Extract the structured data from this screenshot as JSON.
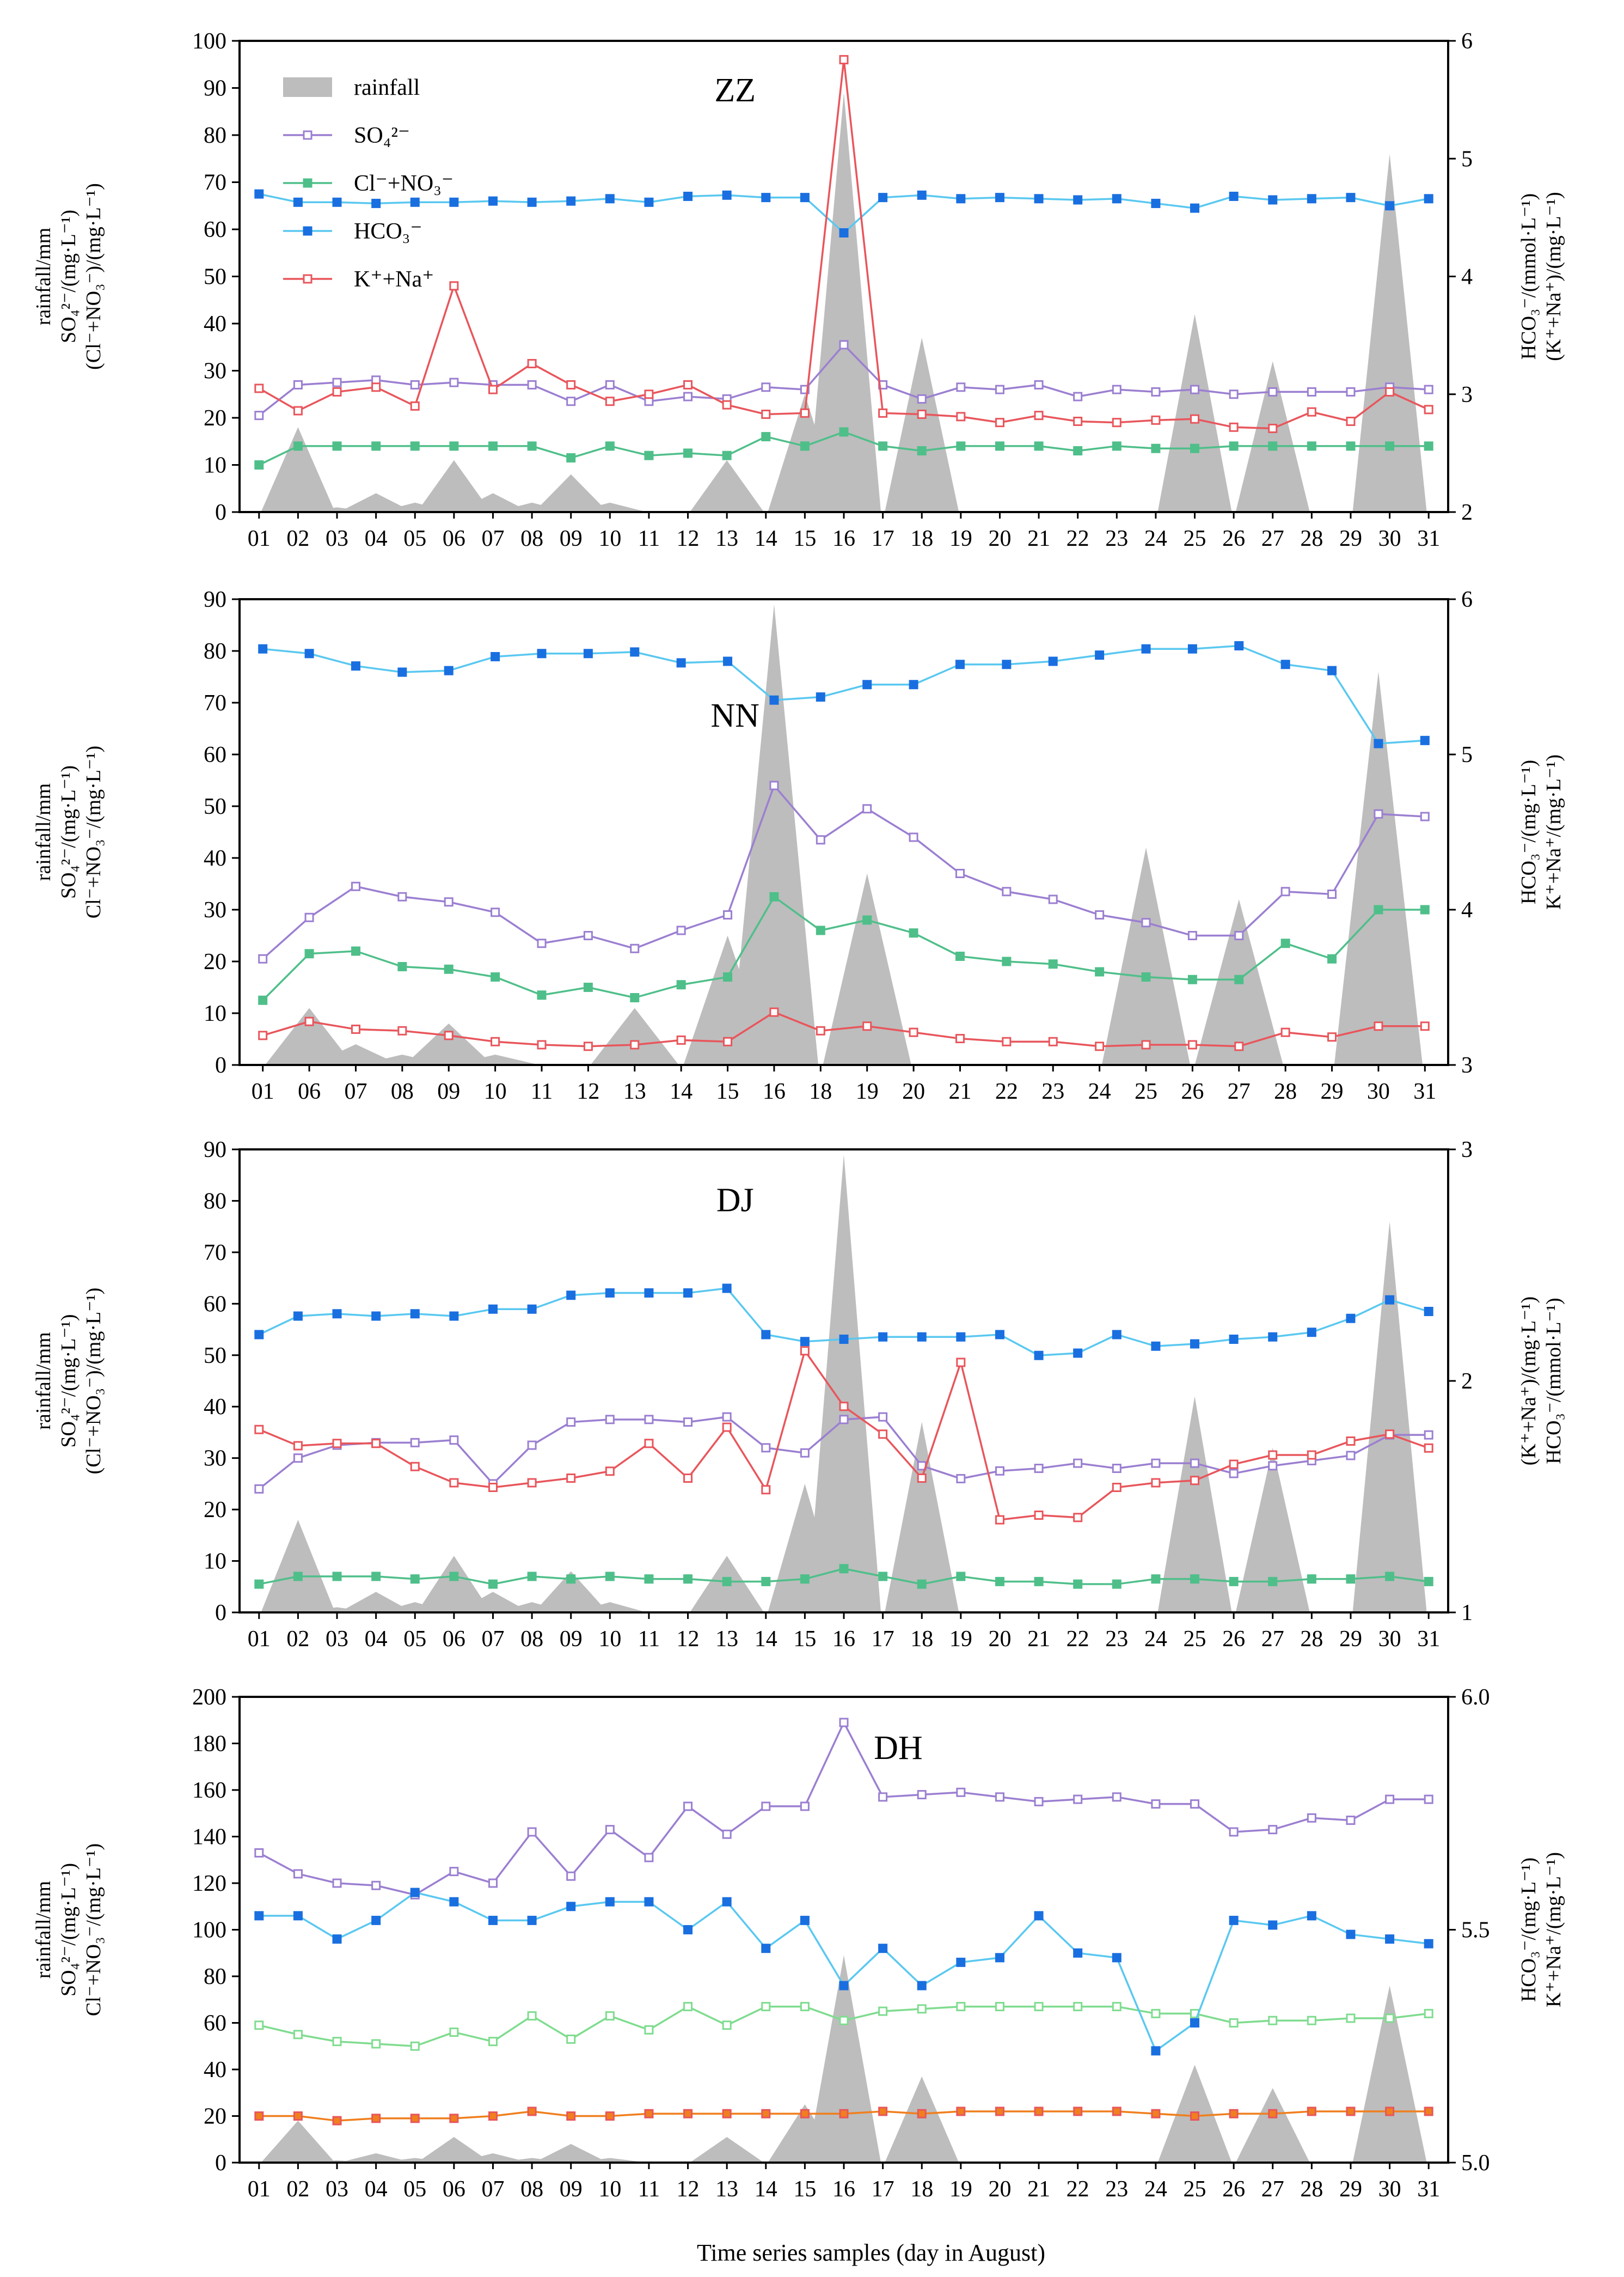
{
  "figure": {
    "xlabel": "Time series samples (day in August)"
  },
  "colors": {
    "rainfall": "#bdbdbd",
    "so4": "#9b7fd1",
    "clno3": "#4fbf8a",
    "clno3_dh": "#7fdc8f",
    "hco3": "#1a6fe0",
    "hco3_line": "#5ac8f0",
    "kna": "#e8565c",
    "kna_dh": "#f07f1e"
  },
  "chart_data": [
    {
      "type": "line",
      "title": "ZZ",
      "legend": {
        "placement": "top-left",
        "entries": [
          {
            "key": "rainfall",
            "text": "rainfall"
          },
          {
            "key": "so4",
            "text": "SO₄²⁻"
          },
          {
            "key": "clno3",
            "text": "Cl⁻+NO₃⁻"
          },
          {
            "key": "hco3",
            "text": "HCO₃⁻"
          },
          {
            "key": "kna",
            "text": "K⁺+Na⁺"
          }
        ]
      },
      "ylabel_left": [
        "rainfall/mm",
        "SO₄²⁻/(mg·L⁻¹)",
        "(Cl⁻+NO₃⁻)/(mg·L⁻¹)"
      ],
      "ylabel_right": [
        "HCO₃⁻/(mmol·L⁻¹)",
        "(K⁺+Na⁺)/(mg·L⁻¹)"
      ],
      "ylim_left": [
        0,
        100
      ],
      "yticks_left": [
        0,
        10,
        20,
        30,
        40,
        50,
        60,
        70,
        80,
        90,
        100
      ],
      "ylim_right": [
        2,
        6
      ],
      "yticks_right": [
        2,
        3,
        4,
        5,
        6
      ],
      "categories": [
        "01",
        "02",
        "03",
        "04",
        "05",
        "06",
        "07",
        "08",
        "09",
        "10",
        "11",
        "12",
        "13",
        "14",
        "15",
        "16",
        "17",
        "18",
        "19",
        "20",
        "21",
        "22",
        "23",
        "24",
        "25",
        "26",
        "27",
        "28",
        "29",
        "30",
        "31"
      ],
      "rainfall": [
        0,
        18,
        1,
        4,
        2,
        11,
        4,
        2,
        8,
        2,
        0,
        0,
        11,
        0,
        25,
        89,
        0,
        37,
        0,
        0,
        0,
        0,
        0,
        0,
        42,
        0,
        32,
        0,
        0,
        76,
        0
      ],
      "series": [
        {
          "key": "so4",
          "axis": "left",
          "values": [
            20.5,
            27,
            27.5,
            28,
            27,
            27.5,
            27,
            27,
            23.5,
            27,
            23.5,
            24.5,
            24,
            26.5,
            26,
            35.5,
            27,
            24,
            26.5,
            26,
            27,
            24.5,
            26,
            25.5,
            26,
            25,
            25.5,
            25.5,
            25.5,
            26.5,
            26
          ]
        },
        {
          "key": "clno3",
          "axis": "left",
          "values": [
            10,
            14,
            14,
            14,
            14,
            14,
            14,
            14,
            11.5,
            14,
            12,
            12.5,
            12,
            16,
            14,
            17,
            14,
            13,
            14,
            14,
            14,
            13,
            14,
            13.5,
            13.5,
            14,
            14,
            14,
            14,
            14,
            14
          ]
        },
        {
          "key": "hco3",
          "axis": "right",
          "values": [
            4.7,
            4.63,
            4.63,
            4.62,
            4.63,
            4.63,
            4.64,
            4.63,
            4.64,
            4.66,
            4.63,
            4.68,
            4.69,
            4.67,
            4.67,
            4.37,
            4.67,
            4.69,
            4.66,
            4.67,
            4.66,
            4.65,
            4.66,
            4.62,
            4.58,
            4.68,
            4.65,
            4.66,
            4.67,
            4.6,
            4.66
          ]
        },
        {
          "key": "kna",
          "axis": "right",
          "values": [
            3.05,
            2.86,
            3.02,
            3.06,
            2.9,
            3.92,
            3.04,
            3.26,
            3.08,
            2.94,
            3.0,
            3.08,
            2.91,
            2.83,
            2.84,
            5.84,
            2.84,
            2.83,
            2.81,
            2.76,
            2.82,
            2.77,
            2.76,
            2.78,
            2.79,
            2.72,
            2.71,
            2.85,
            2.77,
            3.02,
            2.87
          ]
        }
      ]
    },
    {
      "type": "line",
      "title": "NN",
      "ylabel_left": [
        "rainfall/mm",
        "SO₄²⁻/(mg·L⁻¹)",
        "Cl⁻+NO₃⁻/(mg·L⁻¹)"
      ],
      "ylabel_right": [
        "HCO₃⁻/(mg·L⁻¹)",
        "K⁺+Na⁺/(mg·L⁻¹)"
      ],
      "ylim_left": [
        0,
        90
      ],
      "yticks_left": [
        0,
        10,
        20,
        30,
        40,
        50,
        60,
        70,
        80,
        90
      ],
      "ylim_right": [
        3,
        6
      ],
      "yticks_right": [
        3,
        4,
        5,
        6
      ],
      "categories": [
        "01",
        "06",
        "07",
        "08",
        "09",
        "10",
        "11",
        "12",
        "13",
        "14",
        "15",
        "16",
        "18",
        "19",
        "20",
        "21",
        "22",
        "23",
        "24",
        "25",
        "26",
        "27",
        "28",
        "29",
        "30",
        "31"
      ],
      "rainfall": [
        0,
        11,
        4,
        2,
        8,
        2,
        0,
        0,
        11,
        0,
        25,
        89,
        0,
        37,
        0,
        0,
        0,
        0,
        0,
        42,
        0,
        32,
        0,
        0,
        76,
        0
      ],
      "series": [
        {
          "key": "so4",
          "axis": "left",
          "values": [
            20.5,
            28.5,
            34.5,
            32.5,
            31.5,
            29.5,
            23.5,
            25,
            22.5,
            26,
            29,
            54,
            43.5,
            49.5,
            44,
            37,
            33.5,
            32,
            29,
            27.5,
            25,
            25,
            33.5,
            33,
            48.5,
            48
          ]
        },
        {
          "key": "clno3",
          "axis": "left",
          "values": [
            12.5,
            21.5,
            22,
            19,
            18.5,
            17,
            13.5,
            15,
            13,
            15.5,
            17,
            32.5,
            26,
            28,
            25.5,
            21,
            20,
            19.5,
            18,
            17,
            16.5,
            16.5,
            23.5,
            20.5,
            30,
            30
          ]
        },
        {
          "key": "hco3",
          "axis": "right",
          "values": [
            5.68,
            5.65,
            5.57,
            5.53,
            5.54,
            5.63,
            5.65,
            5.65,
            5.66,
            5.59,
            5.6,
            5.35,
            5.37,
            5.45,
            5.45,
            5.58,
            5.58,
            5.6,
            5.64,
            5.68,
            5.68,
            5.7,
            5.58,
            5.54,
            5.07,
            5.09
          ]
        },
        {
          "key": "kna",
          "axis": "right",
          "values": [
            3.19,
            3.28,
            3.23,
            3.22,
            3.19,
            3.15,
            3.13,
            3.12,
            3.13,
            3.16,
            3.15,
            3.34,
            3.22,
            3.25,
            3.21,
            3.17,
            3.15,
            3.15,
            3.12,
            3.13,
            3.13,
            3.12,
            3.21,
            3.18,
            3.25,
            3.25
          ]
        }
      ]
    },
    {
      "type": "line",
      "title": "DJ",
      "ylabel_left": [
        "rainfall/mm",
        "SO₄²⁻/(mg·L⁻¹)",
        "(Cl⁻+NO₃⁻)/(mg·L⁻¹)"
      ],
      "ylabel_right": [
        "(K⁺+Na⁺)/(mg·L⁻¹)",
        "HCO₃⁻/(mmol·L⁻¹)"
      ],
      "ylim_left": [
        0,
        90
      ],
      "yticks_left": [
        0,
        10,
        20,
        30,
        40,
        50,
        60,
        70,
        80,
        90
      ],
      "ylim_right": [
        1,
        3
      ],
      "yticks_right": [
        1,
        2,
        3
      ],
      "categories": [
        "01",
        "02",
        "03",
        "04",
        "05",
        "06",
        "07",
        "08",
        "09",
        "10",
        "11",
        "12",
        "13",
        "14",
        "15",
        "16",
        "17",
        "18",
        "19",
        "20",
        "21",
        "22",
        "23",
        "24",
        "25",
        "26",
        "27",
        "28",
        "29",
        "30",
        "31"
      ],
      "rainfall": [
        0,
        18,
        1,
        4,
        2,
        11,
        4,
        2,
        8,
        2,
        0,
        0,
        11,
        0,
        25,
        89,
        0,
        37,
        0,
        0,
        0,
        0,
        0,
        0,
        42,
        0,
        32,
        0,
        0,
        76,
        0
      ],
      "series": [
        {
          "key": "so4",
          "axis": "left",
          "values": [
            24,
            30,
            32.5,
            33,
            33,
            33.5,
            25,
            32.5,
            37,
            37.5,
            37.5,
            37,
            38,
            32,
            31,
            37.5,
            38,
            28.5,
            26,
            27.5,
            28,
            29,
            28,
            29,
            29,
            27,
            28.5,
            29.5,
            30.5,
            34.5,
            34.5
          ]
        },
        {
          "key": "clno3",
          "axis": "left",
          "values": [
            5.5,
            7,
            7,
            7,
            6.5,
            7,
            5.5,
            7,
            6.5,
            7,
            6.5,
            6.5,
            6,
            6,
            6.5,
            8.5,
            7,
            5.5,
            7,
            6,
            6,
            5.5,
            5.5,
            6.5,
            6.5,
            6,
            6,
            6.5,
            6.5,
            7,
            6
          ]
        },
        {
          "key": "hco3",
          "axis": "right",
          "values": [
            2.2,
            2.28,
            2.29,
            2.28,
            2.29,
            2.28,
            2.31,
            2.31,
            2.37,
            2.38,
            2.38,
            2.38,
            2.4,
            2.2,
            2.17,
            2.18,
            2.19,
            2.19,
            2.19,
            2.2,
            2.11,
            2.12,
            2.2,
            2.15,
            2.16,
            2.18,
            2.19,
            2.21,
            2.27,
            2.35,
            2.3
          ]
        },
        {
          "key": "kna",
          "axis": "right",
          "values": [
            1.79,
            1.72,
            1.73,
            1.73,
            1.63,
            1.56,
            1.54,
            1.56,
            1.58,
            1.61,
            1.73,
            1.58,
            1.8,
            1.53,
            2.13,
            1.89,
            1.77,
            1.58,
            2.08,
            1.4,
            1.42,
            1.41,
            1.54,
            1.56,
            1.57,
            1.64,
            1.68,
            1.68,
            1.74,
            1.77,
            1.71
          ]
        }
      ]
    },
    {
      "type": "line",
      "title": "DH",
      "ylabel_left": [
        "rainfall/mm",
        "SO₄²⁻/(mg·L⁻¹)",
        "Cl⁻+NO₃⁻/(mg·L⁻¹)"
      ],
      "ylabel_right": [
        "HCO₃⁻/(mg·L⁻¹)",
        "K⁺+Na⁺/(mg·L⁻¹)"
      ],
      "ylim_left": [
        0,
        200
      ],
      "yticks_left": [
        0,
        20,
        40,
        60,
        80,
        100,
        120,
        140,
        160,
        180,
        200
      ],
      "ylim_right": [
        5.0,
        6.0
      ],
      "yticks_right": [
        "5.0",
        "5.5",
        "6.0"
      ],
      "categories": [
        "01",
        "02",
        "03",
        "04",
        "05",
        "06",
        "07",
        "08",
        "09",
        "10",
        "11",
        "12",
        "13",
        "14",
        "15",
        "16",
        "17",
        "18",
        "19",
        "20",
        "21",
        "22",
        "23",
        "24",
        "25",
        "26",
        "27",
        "28",
        "29",
        "30",
        "31"
      ],
      "rainfall": [
        0,
        18,
        1,
        4,
        2,
        11,
        4,
        2,
        8,
        2,
        0,
        0,
        11,
        0,
        25,
        89,
        0,
        37,
        0,
        0,
        0,
        0,
        0,
        0,
        42,
        0,
        32,
        0,
        0,
        76,
        0
      ],
      "series": [
        {
          "key": "so4",
          "axis": "left",
          "values": [
            133,
            124,
            120,
            119,
            115,
            125,
            120,
            142,
            123,
            143,
            131,
            153,
            141,
            153,
            153,
            189,
            157,
            158,
            159,
            157,
            155,
            156,
            157,
            154,
            154,
            142,
            143,
            148,
            147,
            156,
            156
          ]
        },
        {
          "key": "clno3",
          "axis": "left",
          "values": [
            59,
            55,
            52,
            51,
            50,
            56,
            52,
            63,
            53,
            63,
            57,
            67,
            59,
            67,
            67,
            61,
            65,
            66,
            67,
            67,
            67,
            67,
            67,
            64,
            64,
            60,
            61,
            61,
            62,
            62,
            64
          ]
        },
        {
          "key": "hco3",
          "axis": "right",
          "values": [
            5.53,
            5.53,
            5.48,
            5.52,
            5.58,
            5.56,
            5.52,
            5.52,
            5.55,
            5.56,
            5.56,
            5.5,
            5.56,
            5.46,
            5.52,
            5.38,
            5.46,
            5.38,
            5.43,
            5.44,
            5.53,
            5.45,
            5.44,
            5.24,
            5.3,
            5.52,
            5.51,
            5.53,
            5.49,
            5.48,
            5.47
          ]
        },
        {
          "key": "kna_dh",
          "axis": "right",
          "values": [
            5.1,
            5.1,
            5.09,
            5.095,
            5.095,
            5.095,
            5.1,
            5.11,
            5.1,
            5.1,
            5.105,
            5.105,
            5.105,
            5.105,
            5.105,
            5.105,
            5.11,
            5.105,
            5.11,
            5.11,
            5.11,
            5.11,
            5.11,
            5.105,
            5.1,
            5.105,
            5.105,
            5.11,
            5.11,
            5.11,
            5.11
          ]
        }
      ]
    }
  ]
}
